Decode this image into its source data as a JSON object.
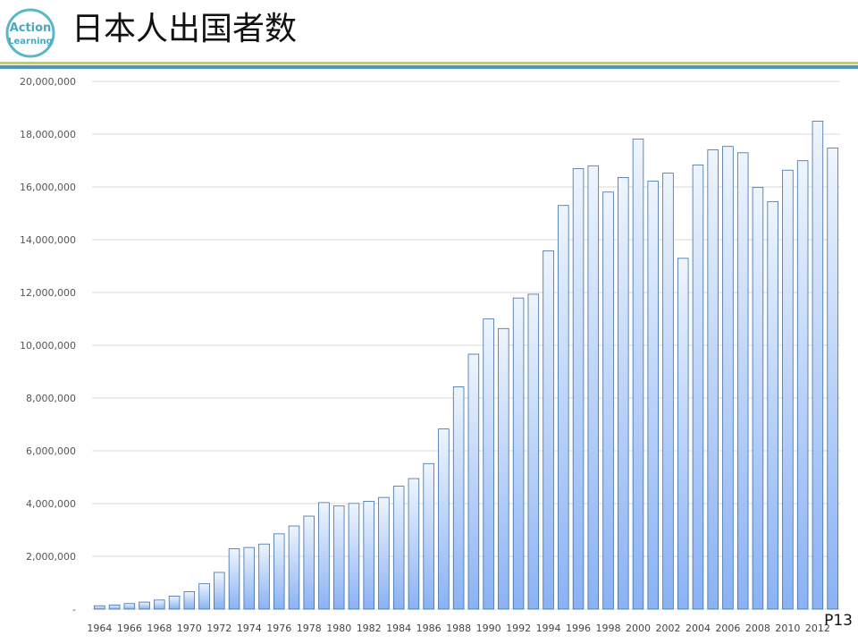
{
  "slide": {
    "title": "日本人出国者数",
    "page_number": "P13",
    "logo_text": [
      "Action",
      "Learning"
    ]
  },
  "colors": {
    "bar_top": "#eef5fd",
    "bar_bottom": "#8ab2f4",
    "bar_stroke": "#3d6ea8",
    "rule_green": "#b6d65a",
    "rule_blue": "#4f96b8"
  },
  "chart_data": {
    "type": "bar",
    "title": "",
    "xlabel": "",
    "ylabel": "",
    "ylim": [
      0,
      20000000
    ],
    "grid": true,
    "y_ticks": [
      "-",
      "2,000,000",
      "4,000,000",
      "6,000,000",
      "8,000,000",
      "10,000,000",
      "12,000,000",
      "14,000,000",
      "16,000,000",
      "18,000,000",
      "20,000,000"
    ],
    "x_tick_labels": [
      "1964",
      "1966",
      "1968",
      "1970",
      "1972",
      "1974",
      "1976",
      "1978",
      "1980",
      "1982",
      "1984",
      "1986",
      "1988",
      "1990",
      "1992",
      "1994",
      "1996",
      "1998",
      "2000",
      "2002",
      "2004",
      "2006",
      "2008",
      "2010",
      "2012"
    ],
    "categories": [
      "1964",
      "1965",
      "1966",
      "1967",
      "1968",
      "1969",
      "1970",
      "1971",
      "1972",
      "1973",
      "1974",
      "1975",
      "1976",
      "1977",
      "1978",
      "1979",
      "1980",
      "1981",
      "1982",
      "1983",
      "1984",
      "1985",
      "1986",
      "1987",
      "1988",
      "1989",
      "1990",
      "1991",
      "1992",
      "1993",
      "1994",
      "1995",
      "1996",
      "1997",
      "1998",
      "1999",
      "2000",
      "2001",
      "2002",
      "2003",
      "2004",
      "2005",
      "2006",
      "2007",
      "2008",
      "2009",
      "2010",
      "2011",
      "2012",
      "2013"
    ],
    "values": [
      128000,
      159000,
      212000,
      268000,
      344000,
      493000,
      663000,
      961000,
      1392000,
      2289000,
      2336000,
      2467000,
      2853000,
      3151000,
      3525000,
      4038000,
      3909000,
      4006000,
      4086000,
      4233000,
      4659000,
      4948000,
      5516000,
      6829000,
      8427000,
      9662000,
      10997000,
      10634000,
      11791000,
      11934000,
      13579000,
      15298000,
      16695000,
      16803000,
      15806000,
      16358000,
      17819000,
      16216000,
      16523000,
      13296000,
      16831000,
      17404000,
      17535000,
      17295000,
      15987000,
      15446000,
      16637000,
      16994000,
      18491000,
      17473000
    ]
  }
}
